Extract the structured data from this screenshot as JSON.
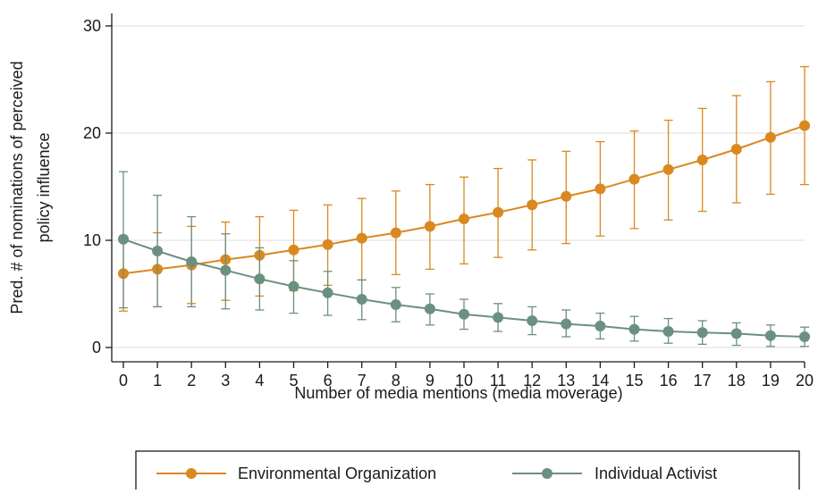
{
  "chart_data": {
    "type": "line",
    "xlabel": "Number of media mentions (media moverage)",
    "ylabel_lines": [
      "Pred. # of nominations of perceived",
      "policy influence"
    ],
    "x": [
      0,
      1,
      2,
      3,
      4,
      5,
      6,
      7,
      8,
      9,
      10,
      11,
      12,
      13,
      14,
      15,
      16,
      17,
      18,
      19,
      20
    ],
    "xlim": [
      0,
      20
    ],
    "ylim": [
      0,
      30
    ],
    "yticks": [
      0,
      10,
      20,
      30
    ],
    "grid": true,
    "legend_position": "bottom",
    "series": [
      {
        "name": "Environmental Organization",
        "color": "#d9891f",
        "values": [
          6.9,
          7.3,
          7.7,
          8.2,
          8.6,
          9.1,
          9.6,
          10.2,
          10.7,
          11.3,
          12.0,
          12.6,
          13.3,
          14.1,
          14.8,
          15.7,
          16.6,
          17.5,
          18.5,
          19.6,
          20.7
        ],
        "lower": [
          3.4,
          3.8,
          4.1,
          4.4,
          4.8,
          5.3,
          5.8,
          6.3,
          6.8,
          7.3,
          7.8,
          8.4,
          9.1,
          9.7,
          10.4,
          11.1,
          11.9,
          12.7,
          13.5,
          14.3,
          15.2
        ],
        "upper": [
          10.4,
          10.7,
          11.3,
          11.7,
          12.2,
          12.8,
          13.3,
          13.9,
          14.6,
          15.2,
          15.9,
          16.7,
          17.5,
          18.3,
          19.2,
          20.2,
          21.2,
          22.3,
          23.5,
          24.8,
          26.2
        ]
      },
      {
        "name": "Individual Activist",
        "color": "#6b9080",
        "values": [
          10.1,
          9.0,
          8.0,
          7.2,
          6.4,
          5.7,
          5.1,
          4.5,
          4.0,
          3.6,
          3.1,
          2.8,
          2.5,
          2.2,
          2.0,
          1.7,
          1.5,
          1.4,
          1.3,
          1.1,
          1.0
        ],
        "lower": [
          3.7,
          3.8,
          3.8,
          3.6,
          3.5,
          3.2,
          3.0,
          2.6,
          2.4,
          2.1,
          1.7,
          1.5,
          1.2,
          1.0,
          0.8,
          0.6,
          0.4,
          0.3,
          0.2,
          0.1,
          0.1
        ],
        "upper": [
          16.4,
          14.2,
          12.2,
          10.6,
          9.3,
          8.1,
          7.1,
          6.3,
          5.6,
          5.0,
          4.5,
          4.1,
          3.8,
          3.5,
          3.2,
          2.9,
          2.7,
          2.5,
          2.3,
          2.1,
          1.9
        ]
      }
    ]
  }
}
